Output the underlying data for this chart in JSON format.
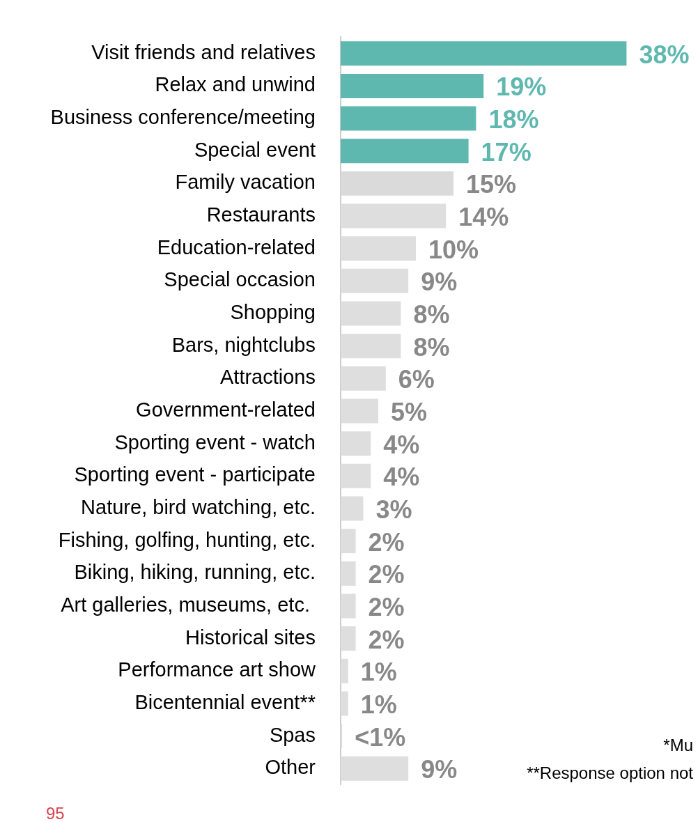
{
  "chart_data": {
    "type": "bar",
    "orientation": "horizontal",
    "categories": [
      "Visit friends and relatives",
      "Relax and unwind",
      "Business conference/meeting",
      "Special event",
      "Family vacation",
      "Restaurants",
      "Education-related",
      "Special occasion",
      "Shopping",
      "Bars, nightclubs",
      "Attractions",
      "Government-related",
      "Sporting event - watch",
      "Sporting event - participate",
      "Nature, bird watching, etc.",
      "Fishing, golfing, hunting, etc.",
      "Biking, hiking, running, etc.",
      "Art galleries, museums, etc. ",
      "Historical sites",
      "Performance art show",
      "Bicentennial event**",
      "Spas",
      "Other"
    ],
    "values": [
      38,
      19,
      18,
      17,
      15,
      14,
      10,
      9,
      8,
      8,
      6,
      5,
      4,
      4,
      3,
      2,
      2,
      2,
      2,
      1,
      1,
      0.2,
      9
    ],
    "colors": [
      "#5fb8b0",
      "#5fb8b0",
      "#5fb8b0",
      "#5fb8b0",
      "#dadada",
      "#dedede",
      "#dedede",
      "#dedede",
      "#dedede",
      "#dedede",
      "#dedede",
      "#dedede",
      "#dedede",
      "#dedede",
      "#dedede",
      "#dedede",
      "#dedede",
      "#dedede",
      "#dedede",
      "#dedede",
      "#dedede",
      "#dedede",
      "#dedede"
    ],
    "value_labels": [
      "38%",
      "19%",
      "18%",
      "17%",
      "15%",
      "14%",
      "10%",
      "9%",
      "8%",
      "8%",
      "6%",
      "5%",
      "4%",
      "4%",
      "3%",
      "2%",
      "2%",
      "2%",
      "2%",
      "1%",
      "1%",
      "<1%",
      "9%"
    ],
    "annotations": [
      "*Mu",
      "**Response option not",
      "95"
    ],
    "grid": false,
    "legend": false
  }
}
